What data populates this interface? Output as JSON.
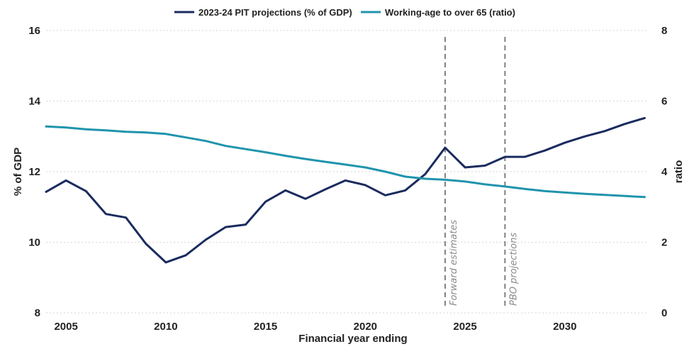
{
  "chart_data": {
    "type": "line",
    "title": "",
    "xlabel": "Financial year ending",
    "ylabel_left": "% of GDP",
    "ylabel_right": "ratio",
    "xlim": [
      2004,
      2034.2
    ],
    "ylim_left": [
      8,
      16
    ],
    "ylim_right": [
      0,
      8
    ],
    "x_ticks": [
      2005,
      2010,
      2015,
      2020,
      2025,
      2030
    ],
    "y_ticks_left": [
      8,
      10,
      12,
      14,
      16
    ],
    "y_ticks_right": [
      0,
      2,
      4,
      6,
      8
    ],
    "grid": "horizontal dotted",
    "legend_position": "top",
    "series": [
      {
        "name": "2023-24 PIT projections (% of GDP)",
        "axis": "left",
        "color": "#1a2b5f",
        "x": [
          2004,
          2005,
          2006,
          2007,
          2008,
          2009,
          2010,
          2011,
          2012,
          2013,
          2014,
          2015,
          2016,
          2017,
          2018,
          2019,
          2020,
          2021,
          2022,
          2023,
          2024,
          2025,
          2026,
          2027,
          2028,
          2029,
          2030,
          2031,
          2032,
          2033,
          2034
        ],
        "values": [
          11.43,
          11.75,
          11.45,
          10.8,
          10.7,
          9.96,
          9.43,
          9.63,
          10.07,
          10.43,
          10.5,
          11.15,
          11.47,
          11.23,
          11.5,
          11.75,
          11.62,
          11.33,
          11.47,
          11.93,
          12.68,
          12.12,
          12.17,
          12.42,
          12.42,
          12.6,
          12.82,
          13.0,
          13.15,
          13.35,
          13.52
        ]
      },
      {
        "name": "Working-age to over 65 (ratio)",
        "axis": "right",
        "color": "#1f94ad",
        "x": [
          2004,
          2005,
          2006,
          2007,
          2008,
          2009,
          2010,
          2011,
          2012,
          2013,
          2014,
          2015,
          2016,
          2017,
          2018,
          2019,
          2020,
          2021,
          2022,
          2023,
          2024,
          2025,
          2026,
          2027,
          2028,
          2029,
          2030,
          2031,
          2032,
          2033,
          2034
        ],
        "values": [
          5.28,
          5.25,
          5.2,
          5.17,
          5.13,
          5.11,
          5.07,
          4.97,
          4.87,
          4.73,
          4.64,
          4.55,
          4.45,
          4.36,
          4.28,
          4.2,
          4.12,
          4.0,
          3.86,
          3.8,
          3.77,
          3.72,
          3.64,
          3.58,
          3.51,
          3.45,
          3.41,
          3.37,
          3.34,
          3.31,
          3.28
        ]
      }
    ],
    "annotations": [
      {
        "label": "Forward estimates",
        "x": 2024
      },
      {
        "label": "PBO projections",
        "x": 2027
      }
    ]
  }
}
